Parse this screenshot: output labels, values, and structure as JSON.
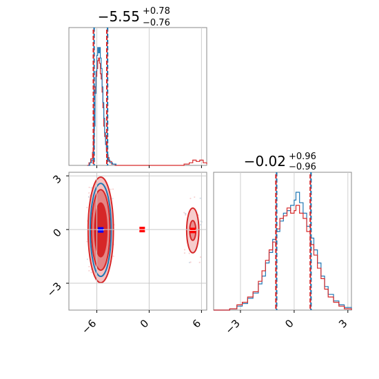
{
  "chart_data": {
    "type": "corner",
    "params": [
      {
        "title_value": "-5.55",
        "title_plus": "+0.78",
        "title_minus": "-0.76",
        "median": -5.55,
        "q_low": -6.31,
        "q_high": -4.77,
        "xlim": [
          -9.2,
          6.6
        ]
      },
      {
        "title_value": "-0.02",
        "title_plus": "+0.96",
        "title_minus": "-0.96",
        "median": -0.02,
        "q_low": -0.98,
        "q_high": 0.94,
        "xlim": [
          -4.5,
          3.2
        ]
      }
    ],
    "ylim_2d": [
      -4.5,
      3.2
    ],
    "ticks_x1": [
      -6,
      0,
      6
    ],
    "ticks_x2": [
      -3,
      0,
      3
    ],
    "ticks_y2": [
      3,
      0,
      -3
    ],
    "tick_labels_x1": [
      "−6",
      "0",
      "6"
    ],
    "tick_labels_x2": [
      "−3",
      "0",
      "3"
    ],
    "tick_labels_y2": [
      "3",
      "0",
      "−3"
    ],
    "series": [
      {
        "color": "#1f77b4"
      },
      {
        "color": "#d62728"
      }
    ],
    "hist1": {
      "blue": [
        [
          -7.0,
          0
        ],
        [
          -6.8,
          0.02
        ],
        [
          -6.6,
          0.04
        ],
        [
          -6.4,
          0.12
        ],
        [
          -6.3,
          0.3
        ],
        [
          -6.2,
          0.55
        ],
        [
          -6.1,
          0.72
        ],
        [
          -6.0,
          0.84
        ],
        [
          -5.9,
          0.9
        ],
        [
          -5.8,
          0.86
        ],
        [
          -5.7,
          0.9
        ],
        [
          -5.6,
          0.82
        ],
        [
          -5.5,
          0.74
        ],
        [
          -5.4,
          0.6
        ],
        [
          -5.3,
          0.48
        ],
        [
          -5.2,
          0.36
        ],
        [
          -5.1,
          0.25
        ],
        [
          -5.0,
          0.16
        ],
        [
          -4.9,
          0.1
        ],
        [
          -4.8,
          0.08
        ],
        [
          -4.7,
          0.04
        ],
        [
          -4.5,
          0.02
        ],
        [
          -4.2,
          0.01
        ],
        [
          -3.8,
          0
        ]
      ],
      "red": [
        [
          -7.1,
          0
        ],
        [
          -6.9,
          0.02
        ],
        [
          -6.7,
          0.05
        ],
        [
          -6.5,
          0.1
        ],
        [
          -6.4,
          0.22
        ],
        [
          -6.3,
          0.42
        ],
        [
          -6.2,
          0.6
        ],
        [
          -6.1,
          0.68
        ],
        [
          -6.0,
          0.74
        ],
        [
          -5.9,
          0.8
        ],
        [
          -5.8,
          0.82
        ],
        [
          -5.7,
          0.78
        ],
        [
          -5.6,
          0.7
        ],
        [
          -5.5,
          0.66
        ],
        [
          -5.4,
          0.56
        ],
        [
          -5.3,
          0.44
        ],
        [
          -5.2,
          0.3
        ],
        [
          -5.1,
          0.22
        ],
        [
          -5.0,
          0.16
        ],
        [
          -4.9,
          0.12
        ],
        [
          -4.8,
          0.06
        ],
        [
          -4.6,
          0.03
        ],
        [
          -4.3,
          0.01
        ],
        [
          -3.9,
          0
        ],
        [
          3.6,
          0
        ],
        [
          4.0,
          0.01
        ],
        [
          4.6,
          0.02
        ],
        [
          5.0,
          0.04
        ],
        [
          5.4,
          0.03
        ],
        [
          5.8,
          0.04
        ],
        [
          6.2,
          0.02
        ],
        [
          6.6,
          0.01
        ]
      ]
    },
    "hist2": {
      "blue": [
        [
          -4.5,
          0
        ],
        [
          -3.6,
          0.01
        ],
        [
          -3.2,
          0.03
        ],
        [
          -2.9,
          0.05
        ],
        [
          -2.6,
          0.09
        ],
        [
          -2.3,
          0.13
        ],
        [
          -2.0,
          0.2
        ],
        [
          -1.8,
          0.26
        ],
        [
          -1.6,
          0.36
        ],
        [
          -1.4,
          0.44
        ],
        [
          -1.2,
          0.54
        ],
        [
          -1.0,
          0.6
        ],
        [
          -0.8,
          0.68
        ],
        [
          -0.6,
          0.74
        ],
        [
          -0.4,
          0.76
        ],
        [
          -0.2,
          0.8
        ],
        [
          0.0,
          0.84
        ],
        [
          0.1,
          0.9
        ],
        [
          0.3,
          0.82
        ],
        [
          0.5,
          0.74
        ],
        [
          0.7,
          0.64
        ],
        [
          0.9,
          0.55
        ],
        [
          1.1,
          0.46
        ],
        [
          1.3,
          0.36
        ],
        [
          1.5,
          0.26
        ],
        [
          1.7,
          0.18
        ],
        [
          1.9,
          0.12
        ],
        [
          2.2,
          0.07
        ],
        [
          2.5,
          0.04
        ],
        [
          2.8,
          0.02
        ],
        [
          3.2,
          0
        ]
      ],
      "red": [
        [
          -4.5,
          0
        ],
        [
          -3.6,
          0.01
        ],
        [
          -3.2,
          0.04
        ],
        [
          -2.9,
          0.06
        ],
        [
          -2.6,
          0.1
        ],
        [
          -2.3,
          0.14
        ],
        [
          -2.0,
          0.22
        ],
        [
          -1.8,
          0.3
        ],
        [
          -1.6,
          0.38
        ],
        [
          -1.4,
          0.46
        ],
        [
          -1.2,
          0.52
        ],
        [
          -1.0,
          0.62
        ],
        [
          -0.8,
          0.7
        ],
        [
          -0.6,
          0.72
        ],
        [
          -0.4,
          0.78
        ],
        [
          -0.2,
          0.74
        ],
        [
          0.0,
          0.76
        ],
        [
          0.1,
          0.8
        ],
        [
          0.3,
          0.74
        ],
        [
          0.5,
          0.7
        ],
        [
          0.7,
          0.6
        ],
        [
          0.9,
          0.5
        ],
        [
          1.1,
          0.42
        ],
        [
          1.3,
          0.32
        ],
        [
          1.5,
          0.24
        ],
        [
          1.7,
          0.16
        ],
        [
          1.9,
          0.1
        ],
        [
          2.2,
          0.06
        ],
        [
          2.5,
          0.03
        ],
        [
          2.8,
          0.01
        ],
        [
          3.2,
          0
        ]
      ]
    },
    "points_2d": [
      {
        "x": -5.55,
        "y": -0.02,
        "color": "#0000ff"
      },
      {
        "x": -0.8,
        "y": 0.0,
        "color": "#ff0000"
      },
      {
        "x": 5.0,
        "y": -0.05,
        "color": "#ff0000"
      }
    ],
    "contours_2d": [
      {
        "cx": -5.55,
        "cy": -0.02,
        "rx": 1.45,
        "ry": 2.95,
        "color": "#d62728",
        "fill": "#f4c2c2"
      },
      {
        "cx": -5.55,
        "cy": -0.02,
        "rx": 1.2,
        "ry": 2.6,
        "color": "#1f77b4",
        "fill": "none"
      },
      {
        "cx": -5.55,
        "cy": -0.02,
        "rx": 1.05,
        "ry": 2.25,
        "color": "#d62728",
        "fill": "#e58585"
      },
      {
        "cx": -5.55,
        "cy": -0.02,
        "rx": 0.7,
        "ry": 1.5,
        "color": "#d62728",
        "fill": "#d62728"
      },
      {
        "cx": 5.0,
        "cy": -0.05,
        "rx": 0.7,
        "ry": 1.25,
        "color": "#d62728",
        "fill": "#f6cccc"
      },
      {
        "cx": 5.0,
        "cy": -0.05,
        "rx": 0.35,
        "ry": 0.55,
        "color": "#d62728",
        "fill": "#e98f8f"
      }
    ]
  }
}
